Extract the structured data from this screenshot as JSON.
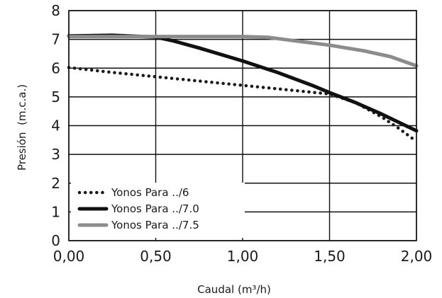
{
  "chart_data": {
    "type": "line",
    "xlabel": "Caudal (m³/h)",
    "ylabel": "Presión  (m.c.a.)",
    "xlim": [
      0,
      2
    ],
    "ylim": [
      0,
      8
    ],
    "x_ticks": [
      "0,00",
      "0,50",
      "1,00",
      "1,50",
      "2,00"
    ],
    "x_tick_values": [
      0,
      0.5,
      1,
      1.5,
      2
    ],
    "y_ticks": [
      "0",
      "1",
      "2",
      "3",
      "4",
      "5",
      "6",
      "7",
      "8"
    ],
    "y_tick_values": [
      0,
      1,
      2,
      3,
      4,
      5,
      6,
      7,
      8
    ],
    "grid": true,
    "legend_position": "bottom-left",
    "series": [
      {
        "name": "Yonos Para ../6",
        "style": "dotted",
        "color": "#1a1a1a",
        "points": [
          [
            0,
            6.02
          ],
          [
            0.25,
            5.85
          ],
          [
            0.5,
            5.7
          ],
          [
            0.75,
            5.55
          ],
          [
            1.0,
            5.4
          ],
          [
            1.25,
            5.25
          ],
          [
            1.5,
            5.1
          ],
          [
            1.65,
            4.8
          ],
          [
            1.8,
            4.3
          ],
          [
            1.9,
            3.9
          ],
          [
            2.0,
            3.45
          ]
        ]
      },
      {
        "name": "Yonos Para ../7.0",
        "style": "solid",
        "color": "#111111",
        "points": [
          [
            0,
            7.12
          ],
          [
            0.25,
            7.14
          ],
          [
            0.5,
            7.08
          ],
          [
            0.6,
            6.95
          ],
          [
            0.75,
            6.7
          ],
          [
            1.0,
            6.25
          ],
          [
            1.2,
            5.85
          ],
          [
            1.4,
            5.4
          ],
          [
            1.5,
            5.15
          ],
          [
            1.65,
            4.8
          ],
          [
            1.8,
            4.4
          ],
          [
            2.0,
            3.82
          ]
        ]
      },
      {
        "name": "Yonos Para ../7.5",
        "style": "solid",
        "color": "#8c8c8c",
        "points": [
          [
            0,
            7.1
          ],
          [
            0.25,
            7.1
          ],
          [
            0.5,
            7.1
          ],
          [
            0.75,
            7.1
          ],
          [
            1.0,
            7.1
          ],
          [
            1.15,
            7.07
          ],
          [
            1.3,
            6.95
          ],
          [
            1.5,
            6.8
          ],
          [
            1.7,
            6.6
          ],
          [
            1.85,
            6.4
          ],
          [
            2.0,
            6.08
          ]
        ]
      }
    ]
  }
}
